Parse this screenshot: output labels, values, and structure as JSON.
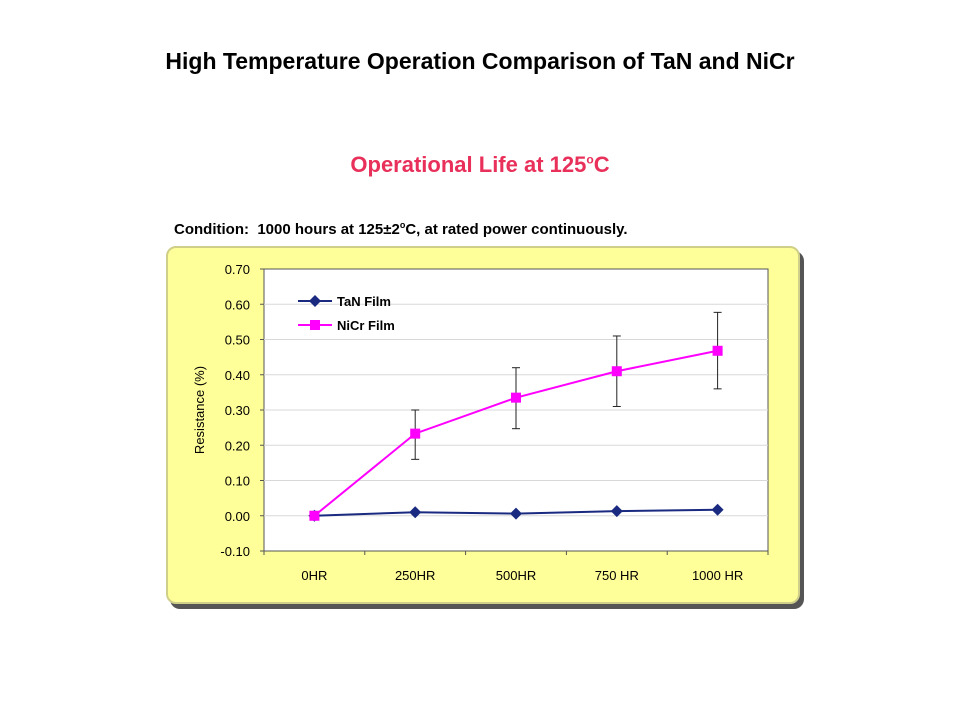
{
  "slide": {
    "title": "High Temperature Operation Comparison of TaN and NiCr",
    "chart_title_main": "Operational Life at 125",
    "chart_title_sup": "o",
    "chart_title_end": "C",
    "condition_label": "Condition:",
    "condition_text_a": "1000 hours at 125±2",
    "condition_sup": "o",
    "condition_text_b": "C, at rated power continuously."
  },
  "colors": {
    "tan": "#1a2a80",
    "nicr": "#ff00ff",
    "panel": "#ffff99",
    "title": "#e8305a"
  },
  "chart_data": {
    "type": "line",
    "title": "Operational Life at 125°C",
    "xlabel": "",
    "ylabel": "Resistance (%)",
    "categories": [
      "0HR",
      "250HR",
      "500HR",
      "750 HR",
      "1000 HR"
    ],
    "ylim": [
      -0.1,
      0.7
    ],
    "yticks": [
      "0.70",
      "0.60",
      "0.50",
      "0.40",
      "0.30",
      "0.20",
      "0.10",
      "0.00",
      "-0.10"
    ],
    "ytick_values": [
      0.7,
      0.6,
      0.5,
      0.4,
      0.3,
      0.2,
      0.1,
      0.0,
      -0.1
    ],
    "grid": true,
    "legend_position": "top-left",
    "series": [
      {
        "name": "TaN Film",
        "color": "#1a2a80",
        "marker": "diamond",
        "values": [
          0.0,
          0.01,
          0.006,
          0.013,
          0.017
        ]
      },
      {
        "name": "NiCr Film",
        "color": "#ff00ff",
        "marker": "square",
        "values": [
          0.0,
          0.233,
          0.335,
          0.41,
          0.468
        ],
        "error_low": [
          null,
          0.16,
          0.247,
          0.31,
          0.36
        ],
        "error_high": [
          null,
          0.3,
          0.42,
          0.51,
          0.577
        ]
      }
    ]
  }
}
